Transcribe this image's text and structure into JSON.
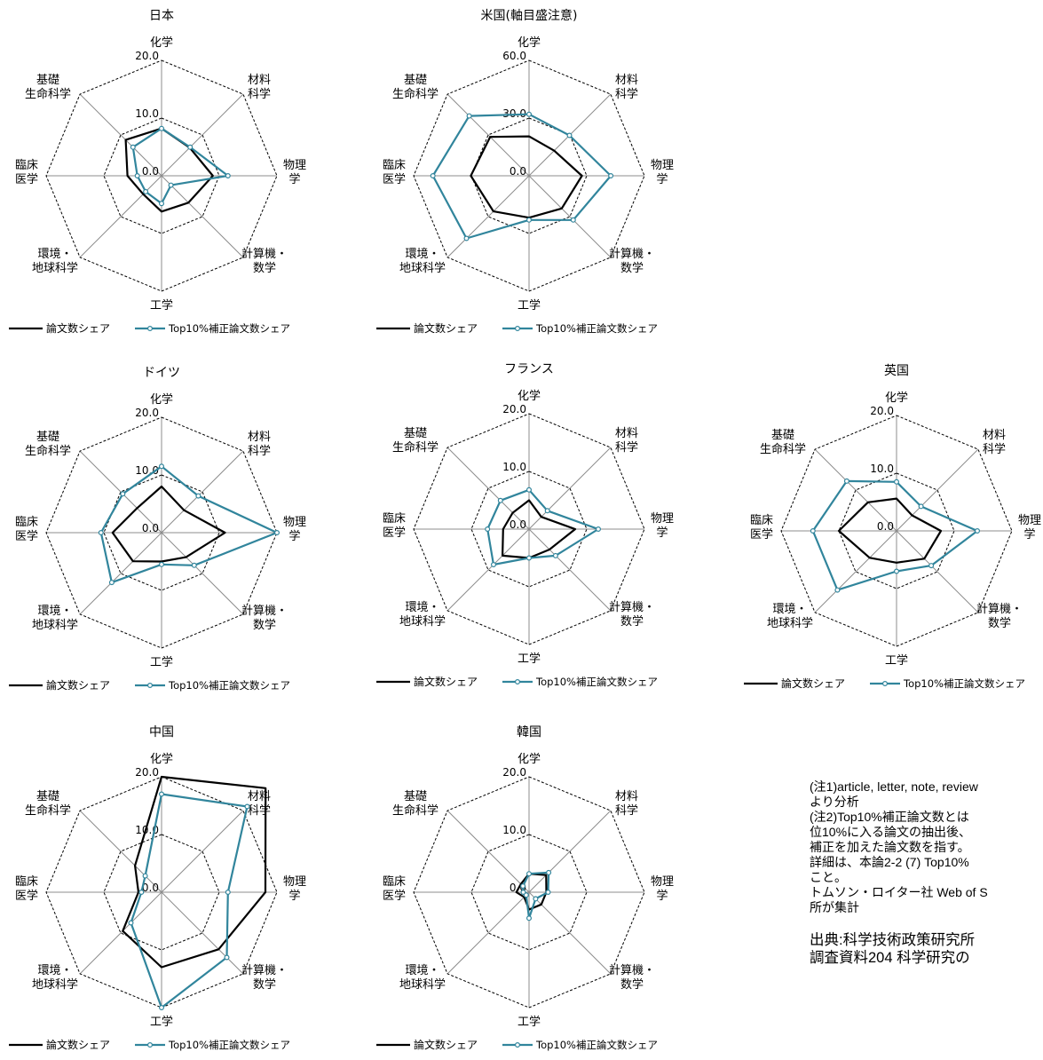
{
  "chart_data": [
    {
      "type": "radar",
      "title": "日本",
      "axes": [
        "化学",
        "材料科学",
        "物理学",
        "計算機・数学",
        "工学",
        "環境・地球科学",
        "臨床医学",
        "基礎生命科学"
      ],
      "axis_labels": [
        [
          "化学"
        ],
        [
          "材料",
          "科学"
        ],
        [
          "物理",
          "学"
        ],
        [
          "計算機・",
          "数学"
        ],
        [
          "工学"
        ],
        [
          "環境・",
          "地球科学"
        ],
        [
          "臨床",
          "医学"
        ],
        [
          "基礎",
          "生命科学"
        ]
      ],
      "ylim": [
        0,
        20
      ],
      "tick_labels": [
        "0.0",
        "10.0",
        "20.0"
      ],
      "series": [
        {
          "name": "論文数シェア",
          "color": "#000000",
          "values": [
            8.2,
            6.9,
            8.9,
            6.6,
            6.2,
            4.5,
            5.9,
            8.8
          ]
        },
        {
          "name": "Top10%補正論文数シェア",
          "color": "#31859c",
          "values": [
            8.2,
            7.0,
            11.5,
            2.3,
            4.8,
            3.9,
            4.2,
            7.0
          ]
        }
      ]
    },
    {
      "type": "radar",
      "title": "米国(軸目盛注意)",
      "axes": [
        "化学",
        "材料科学",
        "物理学",
        "計算機・数学",
        "工学",
        "環境・地球科学",
        "臨床医学",
        "基礎生命科学"
      ],
      "axis_labels": [
        [
          "化学"
        ],
        [
          "材料",
          "科学"
        ],
        [
          "物理",
          "学"
        ],
        [
          "計算機・",
          "数学"
        ],
        [
          "工学"
        ],
        [
          "環境・",
          "地球科学"
        ],
        [
          "臨床",
          "医学"
        ],
        [
          "基礎",
          "生命科学"
        ]
      ],
      "ylim": [
        0,
        60
      ],
      "tick_labels": [
        "0.0",
        "30.0",
        "60.0"
      ],
      "series": [
        {
          "name": "論文数シェア",
          "color": "#000000",
          "values": [
            20.5,
            18.5,
            27.5,
            24.0,
            21.8,
            26.2,
            30.3,
            28.6
          ]
        },
        {
          "name": "Top10%補正論文数シェア",
          "color": "#31859c",
          "values": [
            32.0,
            29.7,
            42.5,
            32.5,
            23.0,
            46.0,
            50.0,
            44.0
          ]
        }
      ]
    },
    {
      "type": "radar",
      "title": "ドイツ",
      "axes": [
        "化学",
        "材料科学",
        "物理学",
        "計算機・数学",
        "工学",
        "環境・地球科学",
        "臨床医学",
        "基礎生命科学"
      ],
      "axis_labels": [
        [
          "化学"
        ],
        [
          "材料",
          "科学"
        ],
        [
          "物理",
          "学"
        ],
        [
          "計算機・",
          "数学"
        ],
        [
          "工学"
        ],
        [
          "環境・",
          "地球科学"
        ],
        [
          "臨床",
          "医学"
        ],
        [
          "基礎",
          "生命科学"
        ]
      ],
      "ylim": [
        0,
        20
      ],
      "tick_labels": [
        "0.0",
        "10.0",
        "20.0"
      ],
      "series": [
        {
          "name": "論文数シェア",
          "color": "#000000",
          "values": [
            8.0,
            5.5,
            11.0,
            6.0,
            5.0,
            7.0,
            8.5,
            6.0
          ]
        },
        {
          "name": "Top10%補正論文数シェア",
          "color": "#31859c",
          "values": [
            11.5,
            9.0,
            20.0,
            8.0,
            5.5,
            12.2,
            10.5,
            9.5
          ]
        }
      ]
    },
    {
      "type": "radar",
      "title": "フランス",
      "axes": [
        "化学",
        "材料科学",
        "物理学",
        "計算機・数学",
        "工学",
        "環境・地球科学",
        "臨床医学",
        "基礎生命科学"
      ],
      "axis_labels": [
        [
          "化学"
        ],
        [
          "材料",
          "科学"
        ],
        [
          "物理",
          "学"
        ],
        [
          "計算機・",
          "数学"
        ],
        [
          "工学"
        ],
        [
          "環境・",
          "地球科学"
        ],
        [
          "臨床",
          "医学"
        ],
        [
          "基礎",
          "生命科学"
        ]
      ],
      "ylim": [
        0,
        20
      ],
      "tick_labels": [
        "0.0",
        "10.0",
        "20.0"
      ],
      "series": [
        {
          "name": "論文数シェア",
          "color": "#000000",
          "values": [
            5.0,
            3.0,
            8.0,
            5.0,
            5.0,
            6.5,
            4.5,
            4.0
          ]
        },
        {
          "name": "Top10%補正論文数シェア",
          "color": "#31859c",
          "values": [
            6.8,
            4.5,
            12.0,
            6.5,
            5.0,
            8.7,
            7.2,
            7.0
          ]
        }
      ]
    },
    {
      "type": "radar",
      "title": "英国",
      "axes": [
        "化学",
        "材料科学",
        "物理学",
        "計算機・数学",
        "工学",
        "環境・地球科学",
        "臨床医学",
        "基礎生命科学"
      ],
      "axis_labels": [
        [
          "化学"
        ],
        [
          "材料",
          "科学"
        ],
        [
          "物理",
          "学"
        ],
        [
          "計算機・",
          "数学"
        ],
        [
          "工学"
        ],
        [
          "環境・",
          "地球科学"
        ],
        [
          "臨床",
          "医学"
        ],
        [
          "基礎",
          "生命科学"
        ]
      ],
      "ylim": [
        0,
        20
      ],
      "tick_labels": [
        "0.0",
        "10.0",
        "20.0"
      ],
      "series": [
        {
          "name": "論文数シェア",
          "color": "#000000",
          "values": [
            5.6,
            3.8,
            7.7,
            6.8,
            5.5,
            6.6,
            10.0,
            7.0
          ]
        },
        {
          "name": "Top10%補正論文数シェア",
          "color": "#31859c",
          "values": [
            8.5,
            6.0,
            14.0,
            8.5,
            7.0,
            14.5,
            14.5,
            12.2
          ]
        }
      ]
    },
    {
      "type": "radar",
      "title": "中国",
      "axes": [
        "化学",
        "材料科学",
        "物理学",
        "計算機・数学",
        "工学",
        "環境・地球科学",
        "臨床医学",
        "基礎生命科学"
      ],
      "axis_labels": [
        [
          "化学"
        ],
        [
          "材料",
          "科学"
        ],
        [
          "物理",
          "学"
        ],
        [
          "計算機・",
          "数学"
        ],
        [
          "工学"
        ],
        [
          "環境・",
          "地球科学"
        ],
        [
          "臨床",
          "医学"
        ],
        [
          "基礎",
          "生命科学"
        ]
      ],
      "ylim": [
        0,
        20
      ],
      "tick_labels": [
        "0.0",
        "10.0",
        "20.0"
      ],
      "series": [
        {
          "name": "論文数シェア",
          "color": "#000000",
          "values": [
            20.0,
            25.5,
            18.0,
            14.0,
            13.0,
            9.5,
            4.0,
            6.5
          ]
        },
        {
          "name": "Top10%補正論文数シェア",
          "color": "#31859c",
          "values": [
            17.0,
            21.0,
            11.5,
            16.0,
            20.0,
            7.5,
            3.5,
            4.0
          ]
        }
      ]
    },
    {
      "type": "radar",
      "title": "韓国",
      "axes": [
        "化学",
        "材料科学",
        "物理学",
        "計算機・数学",
        "工学",
        "環境・地球科学",
        "臨床医学",
        "基礎生命科学"
      ],
      "axis_labels": [
        [
          "化学"
        ],
        [
          "材料",
          "科学"
        ],
        [
          "物理",
          "学"
        ],
        [
          "計算機・",
          "数学"
        ],
        [
          "工学"
        ],
        [
          "環境・",
          "地球科学"
        ],
        [
          "臨床",
          "医学"
        ],
        [
          "基礎",
          "生命科学"
        ]
      ],
      "ylim": [
        0,
        20
      ],
      "tick_labels": [
        "0.0",
        "10.0",
        "20.0"
      ],
      "series": [
        {
          "name": "論文数シェア",
          "color": "#000000",
          "values": [
            3.2,
            4.2,
            3.0,
            3.0,
            3.0,
            1.2,
            2.2,
            2.0
          ]
        },
        {
          "name": "Top10%補正論文数シェア",
          "color": "#31859c",
          "values": [
            3.2,
            4.8,
            3.3,
            1.6,
            4.5,
            0.7,
            1.0,
            1.5
          ]
        }
      ]
    }
  ],
  "notes": {
    "lines": [
      "(注1)article, letter, note, review",
      "より分析",
      "(注2)Top10%補正論文数とは",
      "位10%に入る論文の抽出後、",
      "補正を加えた論文数を指す。",
      "詳細は、本論2-2 (7) Top10%",
      "こと。",
      "トムソン・ロイター社 Web of S",
      "所が集計"
    ],
    "source_lines": [
      "出典:科学技術政策研究所",
      "調査資料204 科学研究の"
    ]
  }
}
